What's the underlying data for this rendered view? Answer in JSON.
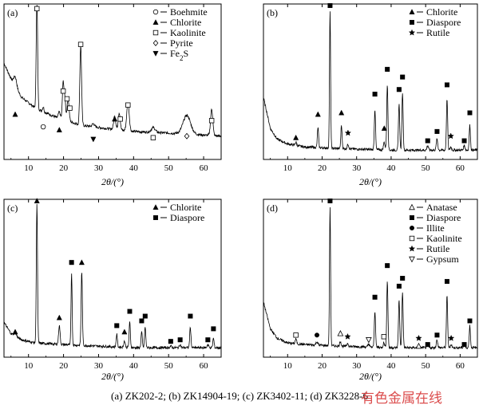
{
  "figure": {
    "caption": "(a) ZK202-2; (b) ZK14904-19; (c) ZK3402-11; (d) ZK3228-6",
    "watermark": "有色金属在线"
  },
  "chart_data": [
    {
      "type": "line",
      "panel_label": "(a)",
      "xlabel": "2θ/(°)",
      "ylabel": "",
      "xlim": [
        3,
        65
      ],
      "ylim": [
        0,
        100
      ],
      "xticks": [
        10,
        20,
        30,
        40,
        50,
        60
      ],
      "grid": false,
      "legend_position": "top-right",
      "legend": [
        {
          "marker": "circle-open",
          "label": "Boehmite"
        },
        {
          "marker": "triangle-up-filled",
          "label": "Chlorite"
        },
        {
          "marker": "square-open",
          "label": "Kaolinite"
        },
        {
          "marker": "diamond-open",
          "label": "Pyrite"
        },
        {
          "marker": "triangle-down-filled",
          "label": "Fe2S"
        }
      ],
      "baseline": [
        [
          3,
          62
        ],
        [
          5,
          52
        ],
        [
          8,
          40
        ],
        [
          12,
          33
        ],
        [
          18,
          27
        ],
        [
          25,
          22
        ],
        [
          32,
          20
        ],
        [
          40,
          18
        ],
        [
          50,
          17
        ],
        [
          58,
          16
        ],
        [
          65,
          15
        ]
      ],
      "peaks": [
        {
          "x": 6.2,
          "h": 6,
          "w": 0.6
        },
        {
          "x": 12.4,
          "h": 72,
          "w": 0.28
        },
        {
          "x": 14.2,
          "h": 3,
          "w": 0.3
        },
        {
          "x": 18.8,
          "h": 4,
          "w": 0.4
        },
        {
          "x": 19.9,
          "h": 24,
          "w": 0.32
        },
        {
          "x": 20.4,
          "h": 13,
          "w": 0.3
        },
        {
          "x": 21.3,
          "h": 14,
          "w": 0.4
        },
        {
          "x": 24.9,
          "h": 51,
          "w": 0.35
        },
        {
          "x": 28.5,
          "h": 2,
          "w": 0.5
        },
        {
          "x": 34.6,
          "h": 9,
          "w": 0.4
        },
        {
          "x": 35.9,
          "h": 11,
          "w": 0.4
        },
        {
          "x": 38.4,
          "h": 18,
          "w": 0.5
        },
        {
          "x": 45.6,
          "h": 3,
          "w": 0.8
        },
        {
          "x": 55.2,
          "h": 12,
          "w": 1.5
        },
        {
          "x": 62.3,
          "h": 17,
          "w": 0.45
        }
      ],
      "markers": [
        {
          "x": 6.2,
          "y": 29,
          "type": "triangle-up-filled"
        },
        {
          "x": 12.4,
          "y": 97,
          "type": "square-open"
        },
        {
          "x": 14.2,
          "y": 21,
          "type": "circle-open"
        },
        {
          "x": 18.8,
          "y": 19,
          "type": "triangle-up-filled"
        },
        {
          "x": 19.9,
          "y": 44,
          "type": "square-open"
        },
        {
          "x": 21.0,
          "y": 39,
          "type": "square-open"
        },
        {
          "x": 21.8,
          "y": 33,
          "type": "square-open"
        },
        {
          "x": 24.9,
          "y": 74,
          "type": "square-open"
        },
        {
          "x": 28.5,
          "y": 13,
          "type": "triangle-down-filled"
        },
        {
          "x": 34.6,
          "y": 26,
          "type": "triangle-up-filled"
        },
        {
          "x": 36.2,
          "y": 26,
          "type": "square-open"
        },
        {
          "x": 38.4,
          "y": 35,
          "type": "square-open"
        },
        {
          "x": 45.6,
          "y": 14,
          "type": "square-open"
        },
        {
          "x": 55.2,
          "y": 15,
          "type": "diamond-open"
        },
        {
          "x": 62.3,
          "y": 25,
          "type": "square-open"
        }
      ]
    },
    {
      "type": "line",
      "panel_label": "(b)",
      "xlabel": "2θ/(°)",
      "ylabel": "",
      "xlim": [
        3,
        65
      ],
      "ylim": [
        0,
        100
      ],
      "xticks": [
        10,
        20,
        30,
        40,
        50,
        60
      ],
      "grid": false,
      "legend_position": "top-right",
      "legend": [
        {
          "marker": "triangle-up-filled",
          "label": "Chlorite"
        },
        {
          "marker": "square-filled",
          "label": "Diaspore"
        },
        {
          "marker": "star-filled",
          "label": "Rutile"
        }
      ],
      "baseline": [
        [
          3,
          40
        ],
        [
          5,
          20
        ],
        [
          7,
          13
        ],
        [
          10,
          10
        ],
        [
          15,
          8
        ],
        [
          25,
          7
        ],
        [
          40,
          6
        ],
        [
          55,
          6
        ],
        [
          65,
          6
        ]
      ],
      "peaks": [
        {
          "x": 12.4,
          "h": 2,
          "w": 0.3
        },
        {
          "x": 18.8,
          "h": 13,
          "w": 0.25
        },
        {
          "x": 22.3,
          "h": 88,
          "w": 0.22
        },
        {
          "x": 25.6,
          "h": 15,
          "w": 0.25
        },
        {
          "x": 27.5,
          "h": 3,
          "w": 0.3
        },
        {
          "x": 35.3,
          "h": 26,
          "w": 0.25
        },
        {
          "x": 38.0,
          "h": 5,
          "w": 0.3
        },
        {
          "x": 38.9,
          "h": 42,
          "w": 0.25
        },
        {
          "x": 42.3,
          "h": 30,
          "w": 0.25
        },
        {
          "x": 43.3,
          "h": 37,
          "w": 0.25
        },
        {
          "x": 50.6,
          "h": 3,
          "w": 0.3
        },
        {
          "x": 53.3,
          "h": 7,
          "w": 0.3
        },
        {
          "x": 56.2,
          "h": 33,
          "w": 0.25
        },
        {
          "x": 57.3,
          "h": 2,
          "w": 0.3
        },
        {
          "x": 61.2,
          "h": 3,
          "w": 0.3
        },
        {
          "x": 62.8,
          "h": 16,
          "w": 0.25
        }
      ],
      "markers": [
        {
          "x": 12.4,
          "y": 14,
          "type": "triangle-up-filled"
        },
        {
          "x": 18.8,
          "y": 29,
          "type": "triangle-up-filled"
        },
        {
          "x": 22.3,
          "y": 99,
          "type": "square-filled"
        },
        {
          "x": 25.6,
          "y": 30,
          "type": "triangle-up-filled"
        },
        {
          "x": 27.5,
          "y": 17,
          "type": "star-filled"
        },
        {
          "x": 35.3,
          "y": 42,
          "type": "square-filled"
        },
        {
          "x": 38.0,
          "y": 20,
          "type": "triangle-up-filled"
        },
        {
          "x": 38.9,
          "y": 58,
          "type": "square-filled"
        },
        {
          "x": 42.3,
          "y": 45,
          "type": "square-filled"
        },
        {
          "x": 43.3,
          "y": 53,
          "type": "square-filled"
        },
        {
          "x": 50.6,
          "y": 12,
          "type": "square-filled"
        },
        {
          "x": 53.3,
          "y": 18,
          "type": "square-filled"
        },
        {
          "x": 56.2,
          "y": 48,
          "type": "square-filled"
        },
        {
          "x": 57.3,
          "y": 15,
          "type": "star-filled"
        },
        {
          "x": 61.2,
          "y": 12,
          "type": "square-filled"
        },
        {
          "x": 62.8,
          "y": 30,
          "type": "square-filled"
        }
      ]
    },
    {
      "type": "line",
      "panel_label": "(c)",
      "xlabel": "2θ/(°)",
      "ylabel": "",
      "xlim": [
        3,
        65
      ],
      "ylim": [
        0,
        100
      ],
      "xticks": [
        10,
        20,
        30,
        40,
        50,
        60
      ],
      "grid": false,
      "legend_position": "top-right",
      "legend": [
        {
          "marker": "triangle-up-filled",
          "label": "Chlorite"
        },
        {
          "marker": "square-filled",
          "label": "Diaspore"
        }
      ],
      "baseline": [
        [
          3,
          22
        ],
        [
          5,
          15
        ],
        [
          8,
          11
        ],
        [
          12,
          9
        ],
        [
          20,
          8
        ],
        [
          30,
          7
        ],
        [
          40,
          6
        ],
        [
          50,
          6
        ],
        [
          65,
          6
        ]
      ],
      "peaks": [
        {
          "x": 6.2,
          "h": 2,
          "w": 0.5
        },
        {
          "x": 12.4,
          "h": 88,
          "w": 0.24
        },
        {
          "x": 18.8,
          "h": 12,
          "w": 0.3
        },
        {
          "x": 22.3,
          "h": 46,
          "w": 0.22
        },
        {
          "x": 25.2,
          "h": 47,
          "w": 0.25
        },
        {
          "x": 35.2,
          "h": 8,
          "w": 0.25
        },
        {
          "x": 37.4,
          "h": 4,
          "w": 0.3
        },
        {
          "x": 38.9,
          "h": 16,
          "w": 0.25
        },
        {
          "x": 42.3,
          "h": 10,
          "w": 0.25
        },
        {
          "x": 43.3,
          "h": 13,
          "w": 0.25
        },
        {
          "x": 50.6,
          "h": 1,
          "w": 0.3
        },
        {
          "x": 53.3,
          "h": 2,
          "w": 0.3
        },
        {
          "x": 56.2,
          "h": 13,
          "w": 0.25
        },
        {
          "x": 61.2,
          "h": 2,
          "w": 0.3
        },
        {
          "x": 62.8,
          "h": 6,
          "w": 0.25
        }
      ],
      "markers": [
        {
          "x": 6.2,
          "y": 16,
          "type": "triangle-up-filled"
        },
        {
          "x": 12.4,
          "y": 99,
          "type": "triangle-up-filled"
        },
        {
          "x": 18.8,
          "y": 25,
          "type": "triangle-up-filled"
        },
        {
          "x": 22.3,
          "y": 60,
          "type": "square-filled"
        },
        {
          "x": 25.2,
          "y": 60,
          "type": "triangle-up-filled"
        },
        {
          "x": 35.2,
          "y": 20,
          "type": "square-filled"
        },
        {
          "x": 37.4,
          "y": 16,
          "type": "triangle-up-filled"
        },
        {
          "x": 38.9,
          "y": 29,
          "type": "square-filled"
        },
        {
          "x": 42.3,
          "y": 23,
          "type": "square-filled"
        },
        {
          "x": 43.3,
          "y": 26,
          "type": "square-filled"
        },
        {
          "x": 50.6,
          "y": 10,
          "type": "square-filled"
        },
        {
          "x": 53.3,
          "y": 11,
          "type": "square-filled"
        },
        {
          "x": 56.2,
          "y": 26,
          "type": "square-filled"
        },
        {
          "x": 61.2,
          "y": 11,
          "type": "square-filled"
        },
        {
          "x": 62.8,
          "y": 18,
          "type": "square-filled"
        }
      ]
    },
    {
      "type": "line",
      "panel_label": "(d)",
      "xlabel": "2θ/(°)",
      "ylabel": "",
      "xlim": [
        3,
        65
      ],
      "ylim": [
        0,
        100
      ],
      "xticks": [
        10,
        20,
        30,
        40,
        50,
        60
      ],
      "grid": false,
      "legend_position": "top-right",
      "legend": [
        {
          "marker": "triangle-up-open",
          "label": "Anatase"
        },
        {
          "marker": "square-filled",
          "label": "Diaspore"
        },
        {
          "marker": "circle-filled",
          "label": "Illite"
        },
        {
          "marker": "square-open",
          "label": "Kaolinite"
        },
        {
          "marker": "star-filled",
          "label": "Rutile"
        },
        {
          "marker": "triangle-down-open",
          "label": "Gypsum"
        }
      ],
      "baseline": [
        [
          3,
          35
        ],
        [
          5,
          18
        ],
        [
          7,
          12
        ],
        [
          10,
          9
        ],
        [
          15,
          8
        ],
        [
          25,
          7
        ],
        [
          40,
          6
        ],
        [
          55,
          6
        ],
        [
          65,
          6
        ]
      ],
      "peaks": [
        {
          "x": 12.4,
          "h": 3,
          "w": 0.3
        },
        {
          "x": 18.5,
          "h": 2,
          "w": 0.4
        },
        {
          "x": 22.3,
          "h": 88,
          "w": 0.22
        },
        {
          "x": 25.3,
          "h": 3,
          "w": 0.3
        },
        {
          "x": 27.4,
          "h": 2,
          "w": 0.3
        },
        {
          "x": 33.5,
          "h": 2,
          "w": 0.3
        },
        {
          "x": 35.3,
          "h": 23,
          "w": 0.25
        },
        {
          "x": 37.9,
          "h": 3,
          "w": 0.3
        },
        {
          "x": 38.9,
          "h": 42,
          "w": 0.25
        },
        {
          "x": 42.3,
          "h": 30,
          "w": 0.25
        },
        {
          "x": 43.3,
          "h": 35,
          "w": 0.25
        },
        {
          "x": 48.0,
          "h": 1,
          "w": 0.3
        },
        {
          "x": 50.6,
          "h": 2,
          "w": 0.3
        },
        {
          "x": 53.3,
          "h": 5,
          "w": 0.3
        },
        {
          "x": 56.2,
          "h": 33,
          "w": 0.25
        },
        {
          "x": 57.4,
          "h": 2,
          "w": 0.3
        },
        {
          "x": 61.2,
          "h": 2,
          "w": 0.3
        },
        {
          "x": 62.8,
          "h": 14,
          "w": 0.25
        }
      ],
      "markers": [
        {
          "x": 12.4,
          "y": 14,
          "type": "square-open"
        },
        {
          "x": 18.5,
          "y": 14,
          "type": "circle-filled"
        },
        {
          "x": 22.3,
          "y": 99,
          "type": "square-filled"
        },
        {
          "x": 25.3,
          "y": 15,
          "type": "triangle-up-open"
        },
        {
          "x": 27.4,
          "y": 13,
          "type": "star-filled"
        },
        {
          "x": 33.5,
          "y": 11,
          "type": "triangle-down-open"
        },
        {
          "x": 35.3,
          "y": 38,
          "type": "square-filled"
        },
        {
          "x": 37.9,
          "y": 13,
          "type": "square-open"
        },
        {
          "x": 38.9,
          "y": 58,
          "type": "square-filled"
        },
        {
          "x": 42.3,
          "y": 45,
          "type": "square-filled"
        },
        {
          "x": 43.3,
          "y": 50,
          "type": "square-filled"
        },
        {
          "x": 48.0,
          "y": 12,
          "type": "star-filled"
        },
        {
          "x": 48.0,
          "y": 7,
          "type": "triangle-up-open"
        },
        {
          "x": 50.6,
          "y": 8,
          "type": "square-filled"
        },
        {
          "x": 53.3,
          "y": 14,
          "type": "square-filled"
        },
        {
          "x": 56.2,
          "y": 48,
          "type": "square-filled"
        },
        {
          "x": 57.4,
          "y": 12,
          "type": "star-filled"
        },
        {
          "x": 61.2,
          "y": 8,
          "type": "square-filled"
        },
        {
          "x": 62.8,
          "y": 23,
          "type": "square-filled"
        }
      ]
    }
  ]
}
